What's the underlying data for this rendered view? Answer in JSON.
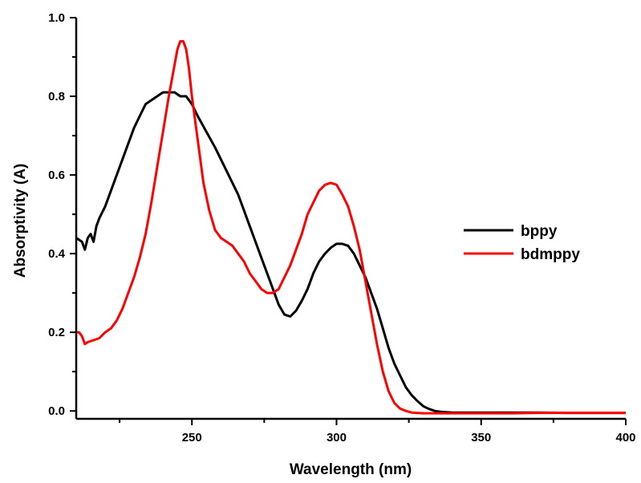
{
  "chart_data": {
    "type": "line",
    "title": "",
    "xlabel": "Wavelength (nm)",
    "ylabel": "Absorptivity (A)",
    "xlim": [
      210,
      400
    ],
    "ylim": [
      -0.02,
      1.0
    ],
    "xticks": [
      250,
      300,
      350,
      400
    ],
    "xtick_labels": [
      "250",
      "300",
      "350",
      "400"
    ],
    "yticks": [
      0.0,
      0.2,
      0.4,
      0.6,
      0.8,
      1.0
    ],
    "ytick_labels": [
      "0.0",
      "0.2",
      "0.4",
      "0.6",
      "0.8",
      "1.0"
    ],
    "grid": false,
    "legend_position": "right",
    "series": [
      {
        "name": "bppy",
        "color": "#000000",
        "x": [
          210,
          212,
          213,
          214,
          215,
          216,
          217,
          218,
          220,
          222,
          224,
          226,
          228,
          230,
          232,
          234,
          236,
          238,
          240,
          242,
          244,
          246,
          248,
          250,
          252,
          255,
          258,
          262,
          266,
          270,
          274,
          278,
          280,
          282,
          284,
          286,
          288,
          290,
          292,
          294,
          296,
          298,
          300,
          302,
          304,
          306,
          308,
          310,
          312,
          314,
          316,
          318,
          320,
          322,
          324,
          326,
          328,
          330,
          332,
          334,
          336,
          340,
          350,
          360,
          370,
          380,
          390,
          400
        ],
        "y": [
          0.44,
          0.43,
          0.41,
          0.44,
          0.45,
          0.43,
          0.47,
          0.49,
          0.52,
          0.56,
          0.6,
          0.64,
          0.68,
          0.72,
          0.75,
          0.78,
          0.79,
          0.8,
          0.81,
          0.81,
          0.81,
          0.8,
          0.8,
          0.78,
          0.75,
          0.71,
          0.67,
          0.61,
          0.55,
          0.47,
          0.39,
          0.31,
          0.27,
          0.245,
          0.24,
          0.255,
          0.28,
          0.31,
          0.35,
          0.38,
          0.4,
          0.415,
          0.425,
          0.425,
          0.42,
          0.4,
          0.37,
          0.34,
          0.3,
          0.26,
          0.21,
          0.16,
          0.12,
          0.09,
          0.06,
          0.04,
          0.025,
          0.012,
          0.005,
          0.0,
          -0.002,
          -0.004,
          -0.004,
          -0.004,
          -0.004,
          -0.005,
          -0.005,
          -0.005
        ]
      },
      {
        "name": "bdmppy",
        "color": "#ff0000",
        "x": [
          210,
          211,
          212,
          213,
          214,
          216,
          218,
          220,
          222,
          224,
          226,
          228,
          230,
          232,
          234,
          236,
          238,
          240,
          242,
          244,
          245,
          246,
          247,
          248,
          249,
          250,
          252,
          254,
          256,
          258,
          260,
          262,
          264,
          266,
          268,
          270,
          272,
          274,
          276,
          278,
          280,
          282,
          284,
          286,
          288,
          290,
          292,
          294,
          296,
          298,
          300,
          302,
          304,
          306,
          308,
          310,
          312,
          314,
          316,
          318,
          320,
          322,
          324,
          326,
          330,
          340,
          350,
          360,
          370,
          380,
          390,
          400
        ],
        "y": [
          0.2,
          0.2,
          0.19,
          0.17,
          0.175,
          0.18,
          0.185,
          0.2,
          0.21,
          0.23,
          0.26,
          0.3,
          0.34,
          0.39,
          0.45,
          0.53,
          0.62,
          0.71,
          0.8,
          0.88,
          0.92,
          0.94,
          0.94,
          0.92,
          0.87,
          0.8,
          0.69,
          0.58,
          0.51,
          0.46,
          0.44,
          0.43,
          0.42,
          0.4,
          0.38,
          0.35,
          0.33,
          0.31,
          0.3,
          0.3,
          0.31,
          0.34,
          0.37,
          0.41,
          0.45,
          0.5,
          0.53,
          0.56,
          0.575,
          0.58,
          0.575,
          0.55,
          0.52,
          0.47,
          0.41,
          0.33,
          0.25,
          0.17,
          0.1,
          0.05,
          0.02,
          0.006,
          0.0,
          -0.004,
          -0.006,
          -0.006,
          -0.006,
          -0.006,
          -0.005,
          -0.005,
          -0.005,
          -0.005
        ]
      }
    ]
  }
}
